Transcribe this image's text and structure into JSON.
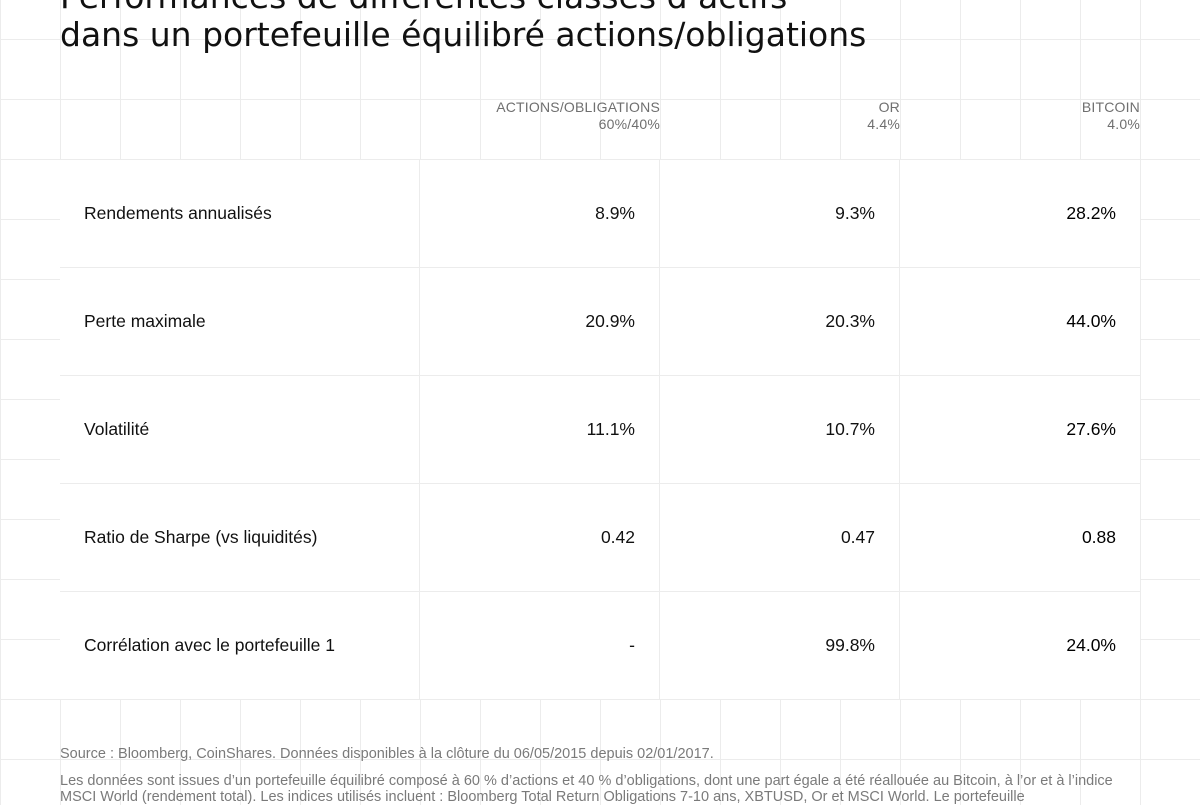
{
  "title": {
    "line1": "Performances de différentes classes d’actifs",
    "line2": "dans un portefeuille équilibré actions/obligations"
  },
  "columns": [
    {
      "label": "ACTIONS/OBLIGATIONS",
      "sub": "60%/40%"
    },
    {
      "label": "OR",
      "sub": "4.4%"
    },
    {
      "label": "BITCOIN",
      "sub": "4.0%"
    }
  ],
  "rows": [
    {
      "metric": "Rendements annualisés",
      "values": [
        "8.9%",
        "9.3%",
        "28.2%"
      ]
    },
    {
      "metric": "Perte maximale",
      "values": [
        "20.9%",
        "20.3%",
        "44.0%"
      ]
    },
    {
      "metric": "Volatilité",
      "values": [
        "11.1%",
        "10.7%",
        "27.6%"
      ]
    },
    {
      "metric": "Ratio de Sharpe (vs liquidités)",
      "values": [
        "0.42",
        "0.47",
        "0.88"
      ]
    },
    {
      "metric": "Corrélation avec le portefeuille 1",
      "values": [
        "-",
        "99.8%",
        "24.0%"
      ]
    }
  ],
  "footer": {
    "source": "Source : Bloomberg, CoinShares. Données disponibles à la clôture du 06/05/2015 depuis 02/01/2017.",
    "note": "Les données sont issues d’un portefeuille équilibré composé à 60 % d’actions et 40 % d’obligations, dont une part égale a été réallouée au Bitcoin, à l’or et à l’indice MSCI World (rendement total). Les indices utilisés incluent : Bloomberg Total Return Obligations 7-10 ans, XBTUSD, Or et MSCI World. Le portefeuille"
  }
}
